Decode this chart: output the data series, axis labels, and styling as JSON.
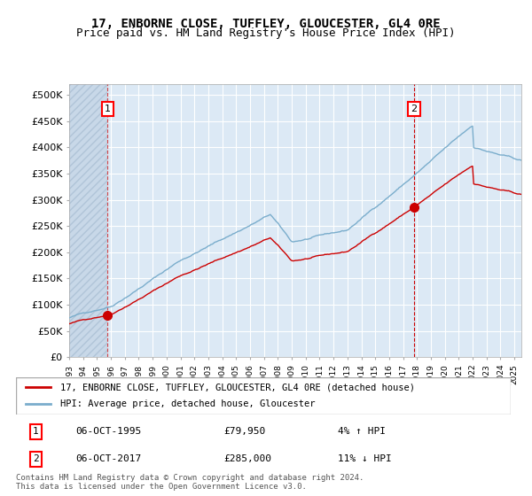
{
  "title": "17, ENBORNE CLOSE, TUFFLEY, GLOUCESTER, GL4 0RE",
  "subtitle": "Price paid vs. HM Land Registry's House Price Index (HPI)",
  "legend_line1": "17, ENBORNE CLOSE, TUFFLEY, GLOUCESTER, GL4 0RE (detached house)",
  "legend_line2": "HPI: Average price, detached house, Gloucester",
  "annotation1_label": "1",
  "annotation1_date": "06-OCT-1995",
  "annotation1_price": "£79,950",
  "annotation1_hpi": "4% ↑ HPI",
  "annotation2_label": "2",
  "annotation2_date": "06-OCT-2017",
  "annotation2_price": "£285,000",
  "annotation2_hpi": "11% ↓ HPI",
  "footnote": "Contains HM Land Registry data © Crown copyright and database right 2024.\nThis data is licensed under the Open Government Licence v3.0.",
  "plot_bg": "#dce9f5",
  "hatch_color": "#b0c4d8",
  "grid_color": "#ffffff",
  "red_line_color": "#cc0000",
  "blue_line_color": "#7aadcc",
  "dashed_vline_color": "#cc0000",
  "point1_x": 1995.77,
  "point1_y": 79950,
  "point2_x": 2017.77,
  "point2_y": 285000,
  "vline1_x": 1995.77,
  "vline2_x": 2017.77,
  "xmin": 1993.0,
  "xmax": 2025.5,
  "ymin": 0,
  "ymax": 520000,
  "yticks": [
    0,
    50000,
    100000,
    150000,
    200000,
    250000,
    300000,
    350000,
    400000,
    450000,
    500000
  ],
  "ytick_labels": [
    "£0",
    "£50K",
    "£100K",
    "£150K",
    "£200K",
    "£250K",
    "£300K",
    "£350K",
    "£400K",
    "£450K",
    "£500K"
  ]
}
